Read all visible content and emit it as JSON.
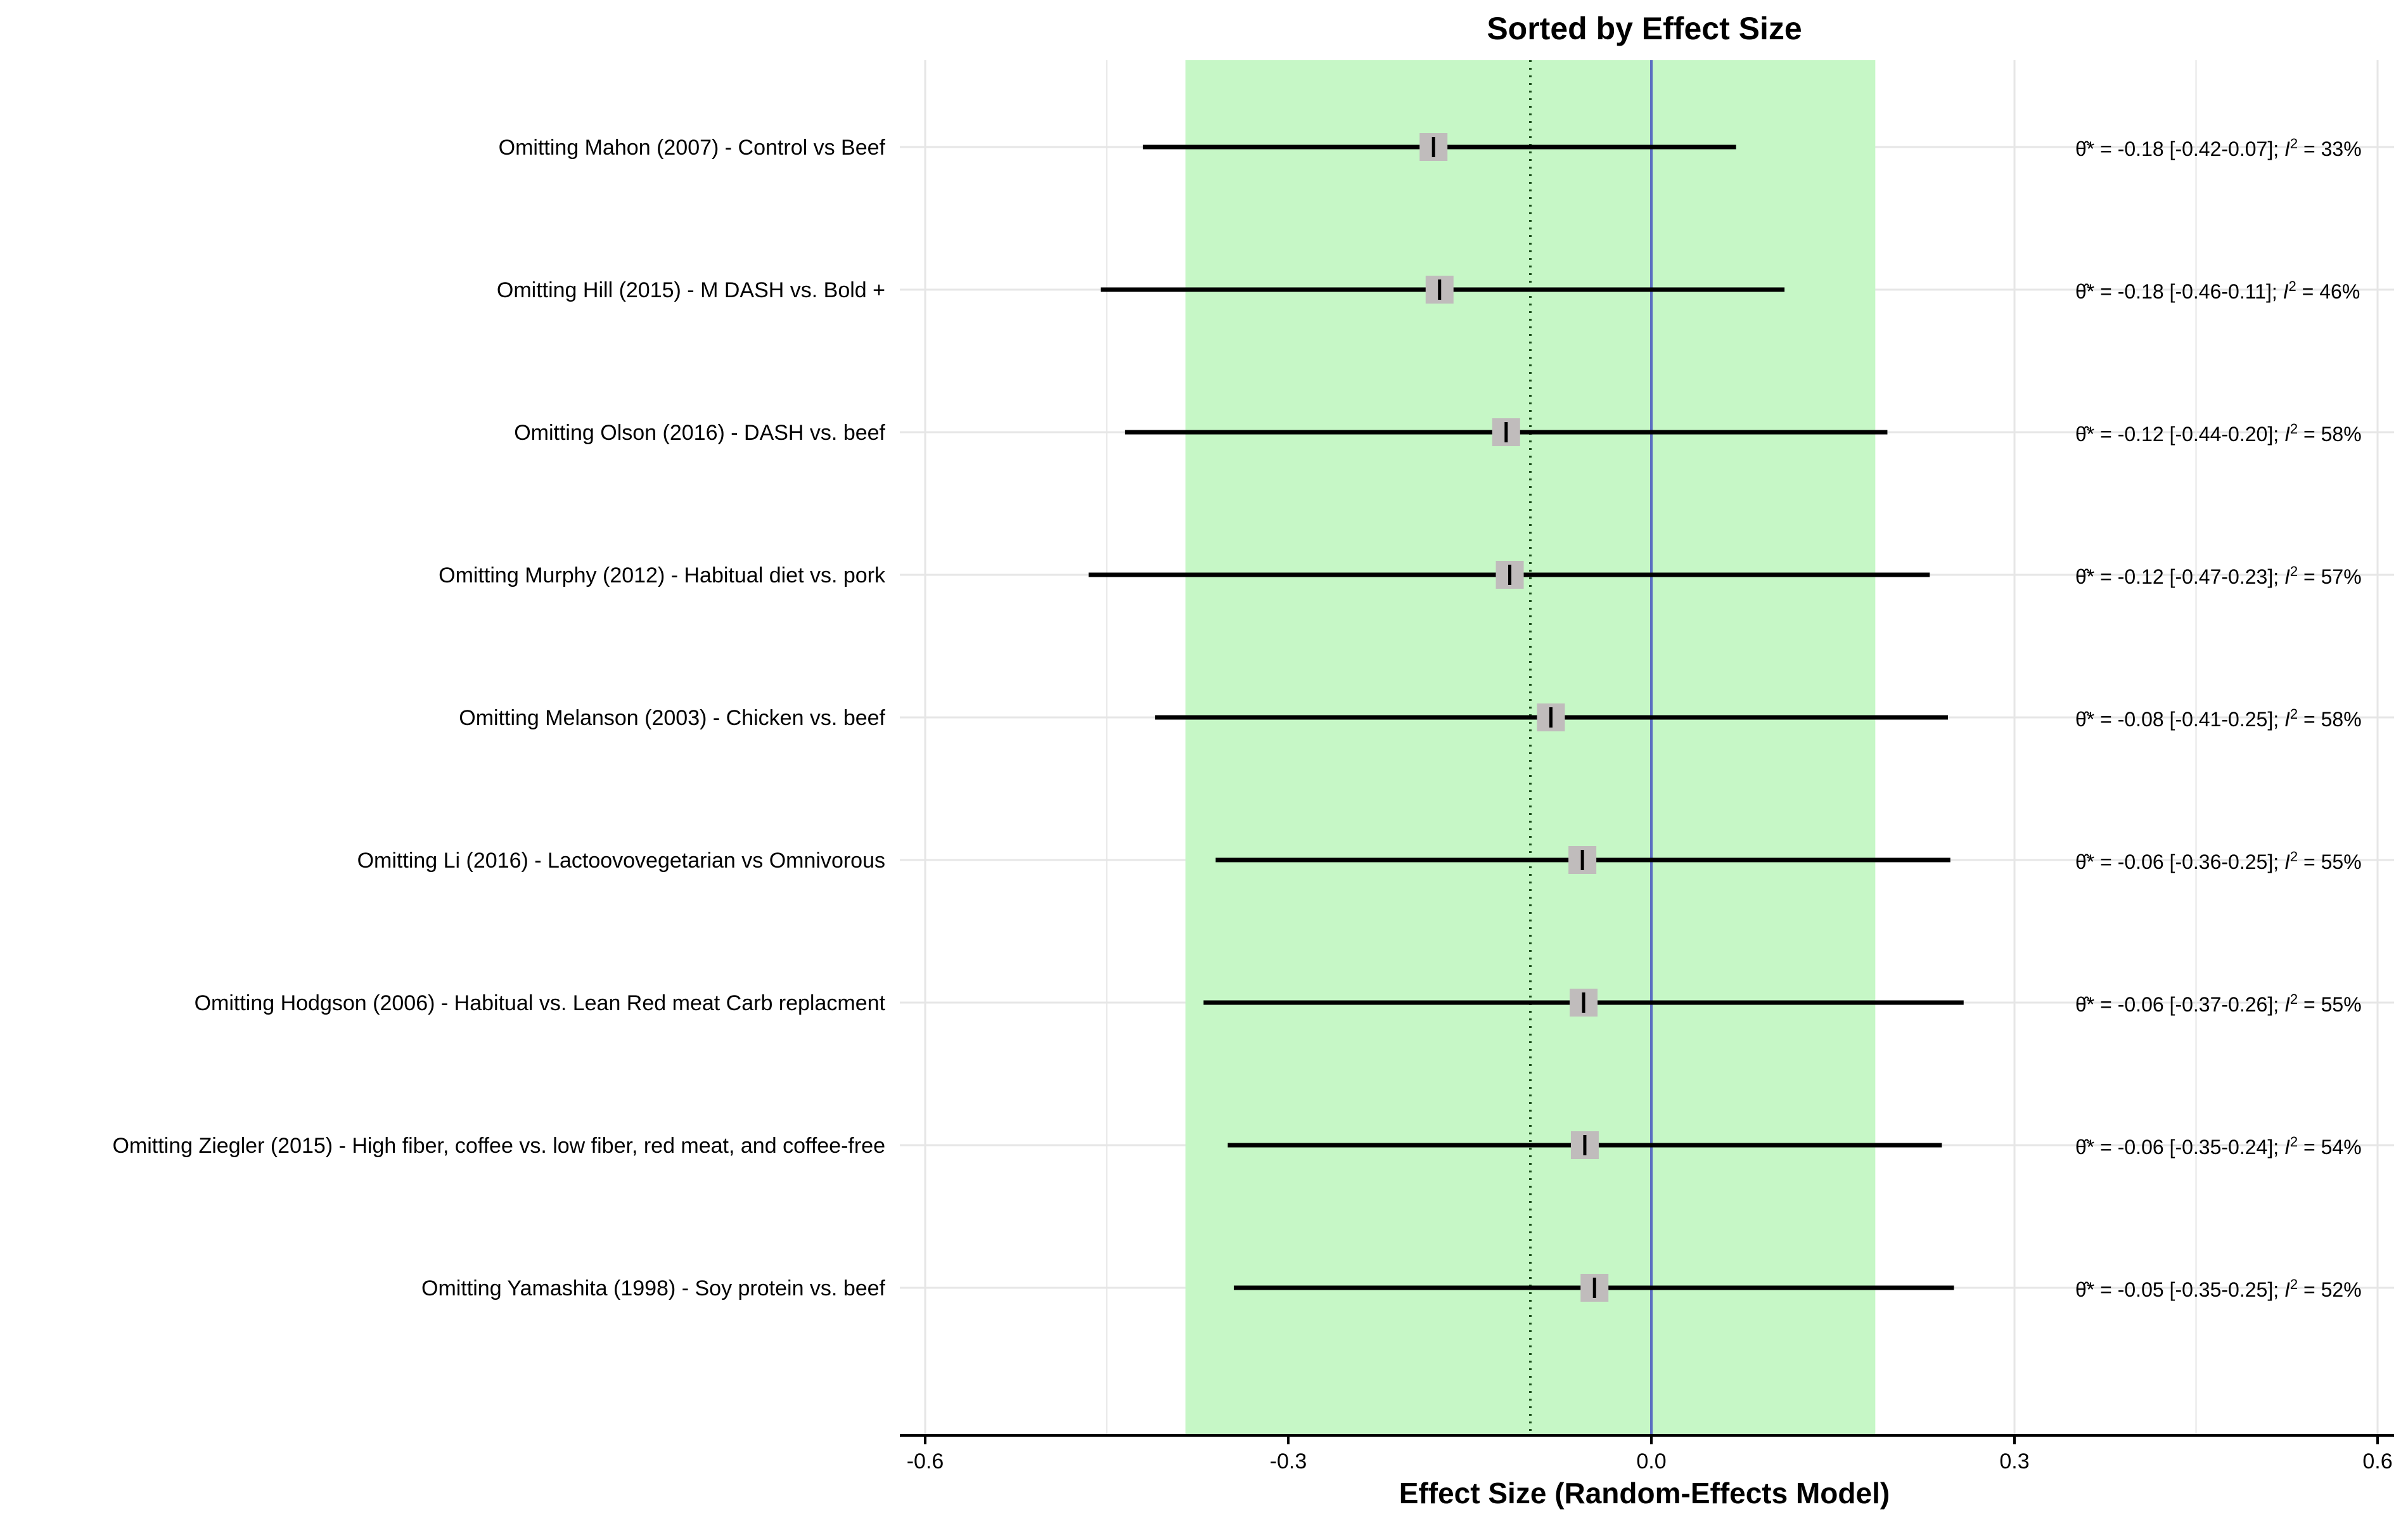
{
  "chart_data": {
    "type": "forest",
    "title": "Sorted by Effect Size",
    "xlabel": "Effect Size (Random-Effects Model)",
    "xlim": [
      -0.62,
      0.62
    ],
    "xticks": [
      -0.6,
      -0.3,
      0.0,
      0.3,
      0.6
    ],
    "xtick_labels": [
      "-0.6",
      "-0.3",
      "0.0",
      "0.3",
      "0.6"
    ],
    "grid": true,
    "pooled_estimate": -0.1,
    "prediction_band": [
      -0.385,
      0.185
    ],
    "reference_line": 0.0,
    "colors": {
      "band": "#c6f7c6",
      "reference": "#5b6fc1",
      "point": "#c0bcbc",
      "interval": "#000000",
      "grid": "#e6e6e6"
    },
    "studies": [
      {
        "label": "Omitting Mahon (2007) - Control vs Beef",
        "est": -0.18,
        "lo": -0.42,
        "hi": 0.07,
        "annotation": "= -0.18 [-0.42-0.07]; ",
        "i2": "= 33%"
      },
      {
        "label": "Omitting Hill (2015) - M DASH vs. Bold +",
        "est": -0.175,
        "lo": -0.455,
        "hi": 0.11,
        "annotation": "= -0.18 [-0.46-0.11]; ",
        "i2": "= 46%"
      },
      {
        "label": "Omitting Olson (2016) - DASH vs. beef",
        "est": -0.12,
        "lo": -0.435,
        "hi": 0.195,
        "annotation": "= -0.12 [-0.44-0.20]; ",
        "i2": "= 58%"
      },
      {
        "label": "Omitting Murphy (2012) - Habitual diet vs. pork",
        "est": -0.117,
        "lo": -0.465,
        "hi": 0.23,
        "annotation": "= -0.12 [-0.47-0.23]; ",
        "i2": "= 57%"
      },
      {
        "label": "Omitting Melanson (2003) - Chicken vs. beef",
        "est": -0.083,
        "lo": -0.41,
        "hi": 0.245,
        "annotation": "= -0.08 [-0.41-0.25]; ",
        "i2": "= 58%"
      },
      {
        "label": "Omitting Li (2016) - Lactoovovegetarian vs Omnivorous",
        "est": -0.057,
        "lo": -0.36,
        "hi": 0.247,
        "annotation": "= -0.06 [-0.36-0.25]; ",
        "i2": "= 55%"
      },
      {
        "label": "Omitting Hodgson (2006) - Habitual vs. Lean Red meat Carb replacment",
        "est": -0.056,
        "lo": -0.37,
        "hi": 0.258,
        "annotation": "= -0.06 [-0.37-0.26]; ",
        "i2": "= 55%"
      },
      {
        "label": "Omitting Ziegler (2015) - High fiber, coffee vs. low fiber, red meat, and coffee-free",
        "est": -0.055,
        "lo": -0.35,
        "hi": 0.24,
        "annotation": "= -0.06 [-0.35-0.24]; ",
        "i2": "= 54%"
      },
      {
        "label": "Omitting Yamashita (1998) - Soy protein vs. beef",
        "est": -0.047,
        "lo": -0.345,
        "hi": 0.25,
        "annotation": "= -0.05 [-0.35-0.25]; ",
        "i2": "= 52%"
      }
    ],
    "annotation_symbol": "θ̂*",
    "annotation_stat": "I"
  }
}
